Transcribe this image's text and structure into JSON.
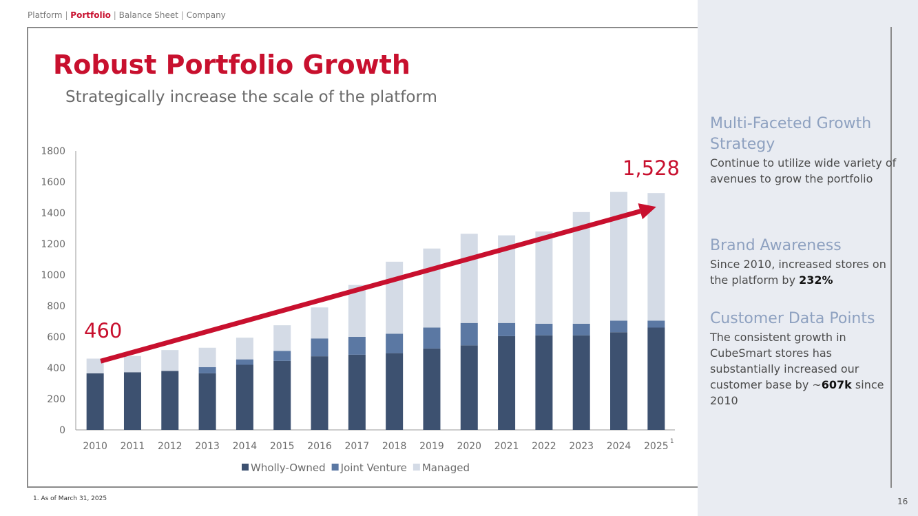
{
  "breadcrumb": {
    "items": [
      "Platform",
      "Portfolio",
      "Balance Sheet",
      "Company"
    ],
    "active_index": 1
  },
  "title": "Robust Portfolio Growth",
  "subtitle": "Strategically increase the scale of the platform",
  "colors": {
    "accent_red": "#c8102e",
    "wholly_owned": "#3d5170",
    "joint_venture": "#5b78a3",
    "managed": "#d4dbe6",
    "panel_heading": "#8ea1c0",
    "panel_bg": "#e9ecf2"
  },
  "chart_data": {
    "type": "bar",
    "stacked": true,
    "categories": [
      "2010",
      "2011",
      "2012",
      "2013",
      "2014",
      "2015",
      "2016",
      "2017",
      "2018",
      "2019",
      "2020",
      "2021",
      "2022",
      "2023",
      "2024",
      "2025"
    ],
    "last_category_footnote": "1",
    "series": [
      {
        "name": "Wholly-Owned",
        "values": [
          365,
          372,
          380,
          365,
          420,
          445,
          475,
          485,
          495,
          525,
          545,
          605,
          610,
          610,
          630,
          660
        ]
      },
      {
        "name": "Joint Venture",
        "values": [
          0,
          0,
          0,
          40,
          35,
          65,
          115,
          115,
          125,
          135,
          145,
          85,
          75,
          75,
          75,
          45
        ]
      },
      {
        "name": "Managed",
        "values": [
          95,
          105,
          135,
          125,
          140,
          165,
          200,
          335,
          465,
          510,
          575,
          565,
          595,
          720,
          830,
          823
        ]
      }
    ],
    "yticks": [
      0,
      200,
      400,
      600,
      800,
      1000,
      1200,
      1400,
      1600,
      1800
    ],
    "ylim": [
      0,
      1800
    ],
    "legend_position": "bottom",
    "annotations": {
      "start_label": "460",
      "end_label": "1,528",
      "trend_arrow": {
        "from": {
          "year": "2010",
          "value": 470
        },
        "to": {
          "year": "2025",
          "value": 1590
        }
      }
    }
  },
  "side_panel": {
    "blocks": [
      {
        "heading": "Multi-Faceted Growth Strategy",
        "text": "Continue to utilize wide variety of avenues to grow the portfolio",
        "emphasis": ""
      },
      {
        "heading": "Brand Awareness",
        "text": "Since 2010, increased stores on the platform by",
        "emphasis": "232%",
        "text_after": ""
      },
      {
        "heading": "Customer Data Points",
        "text": "The consistent growth in CubeSmart stores has substantially increased our customer base by ~",
        "emphasis": "607k",
        "text_after": " since 2010"
      }
    ]
  },
  "footnote": "1.   As of March 31, 2025",
  "page_number": "16"
}
